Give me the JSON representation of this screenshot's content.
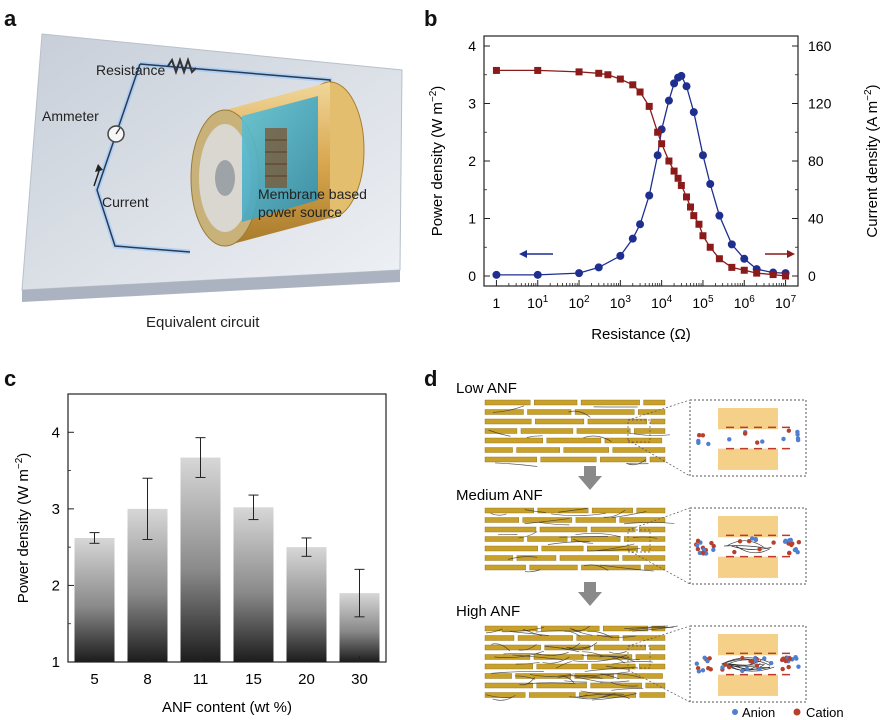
{
  "panels": {
    "a": "a",
    "b": "b",
    "c": "c",
    "d": "d"
  },
  "panel_a": {
    "labels": {
      "resistance": "Resistance",
      "ammeter": "Ammeter",
      "current": "Current",
      "membrane_line1": "Membrane based",
      "membrane_line2": "power source"
    },
    "caption": "Equivalent circuit"
  },
  "panel_d": {
    "low": "Low ANF",
    "medium": "Medium ANF",
    "high": "High ANF",
    "legend_anion": "Anion",
    "legend_cation": "Cation"
  },
  "colors": {
    "power_series": "#1f2f8f",
    "current_series": "#8b1a1a",
    "fiber": "#c8a12a",
    "anion": "#4f7fd0",
    "cation": "#b8402a"
  },
  "chart_data": [
    {
      "id": "b",
      "type": "scatter",
      "xlabel": "Resistance (Ω)",
      "ylabel_left_base": "Power density (W m",
      "ylabel_left_sup": "−2",
      "ylabel_left_end": ")",
      "ylabel_right_base": "Current density (A m",
      "ylabel_right_sup": "−2",
      "ylabel_right_end": ")",
      "x_scale": "log",
      "xlim": [
        1,
        10000000
      ],
      "ylim_left": [
        0,
        4
      ],
      "ylim_right": [
        0,
        160
      ],
      "x_ticks": [
        {
          "base": "1",
          "exp": ""
        },
        {
          "base": "10",
          "exp": "1"
        },
        {
          "base": "10",
          "exp": "2"
        },
        {
          "base": "10",
          "exp": "3"
        },
        {
          "base": "10",
          "exp": "4"
        },
        {
          "base": "10",
          "exp": "5"
        },
        {
          "base": "10",
          "exp": "6"
        },
        {
          "base": "10",
          "exp": "7"
        }
      ],
      "y_left_ticks": [
        "0",
        "1",
        "2",
        "3",
        "4"
      ],
      "y_right_ticks": [
        "0",
        "40",
        "80",
        "120",
        "160"
      ],
      "series": [
        {
          "name": "Power density",
          "axis": "left",
          "marker": "circle",
          "points": [
            [
              1,
              0.02
            ],
            [
              10,
              0.02
            ],
            [
              100,
              0.05
            ],
            [
              300,
              0.15
            ],
            [
              1000,
              0.35
            ],
            [
              2000,
              0.65
            ],
            [
              3000,
              0.9
            ],
            [
              5000,
              1.4
            ],
            [
              8000,
              2.1
            ],
            [
              10000,
              2.55
            ],
            [
              15000,
              3.05
            ],
            [
              20000,
              3.35
            ],
            [
              25000,
              3.45
            ],
            [
              30000,
              3.48
            ],
            [
              40000,
              3.3
            ],
            [
              60000,
              2.85
            ],
            [
              100000,
              2.1
            ],
            [
              150000,
              1.6
            ],
            [
              250000,
              1.05
            ],
            [
              500000,
              0.55
            ],
            [
              1000000,
              0.3
            ],
            [
              2000000,
              0.12
            ],
            [
              5000000,
              0.06
            ],
            [
              10000000,
              0.05
            ]
          ]
        },
        {
          "name": "Current density",
          "axis": "right",
          "marker": "square",
          "points": [
            [
              1,
              143
            ],
            [
              10,
              143
            ],
            [
              100,
              142
            ],
            [
              300,
              141
            ],
            [
              500,
              140
            ],
            [
              1000,
              137
            ],
            [
              2000,
              133
            ],
            [
              3000,
              128
            ],
            [
              5000,
              118
            ],
            [
              8000,
              100
            ],
            [
              10000,
              92
            ],
            [
              15000,
              80
            ],
            [
              20000,
              73
            ],
            [
              25000,
              68
            ],
            [
              30000,
              63
            ],
            [
              40000,
              55
            ],
            [
              50000,
              48
            ],
            [
              60000,
              42
            ],
            [
              80000,
              36
            ],
            [
              100000,
              28
            ],
            [
              150000,
              20
            ],
            [
              250000,
              12
            ],
            [
              500000,
              6
            ],
            [
              1000000,
              4
            ],
            [
              2000000,
              2
            ],
            [
              5000000,
              1
            ],
            [
              10000000,
              0
            ]
          ]
        }
      ]
    },
    {
      "id": "c",
      "type": "bar",
      "xlabel": "ANF content (wt %)",
      "ylabel_base": "Power density (W m",
      "ylabel_sup": "−2",
      "ylabel_end": ")",
      "categories": [
        "5",
        "8",
        "11",
        "15",
        "20",
        "30"
      ],
      "values": [
        2.62,
        3.0,
        3.67,
        3.02,
        2.5,
        1.9
      ],
      "errors": [
        0.07,
        0.4,
        0.26,
        0.16,
        0.12,
        0.31
      ],
      "ylim": [
        1,
        4.5
      ],
      "y_ticks": [
        "1",
        "2",
        "3",
        "4"
      ]
    }
  ]
}
